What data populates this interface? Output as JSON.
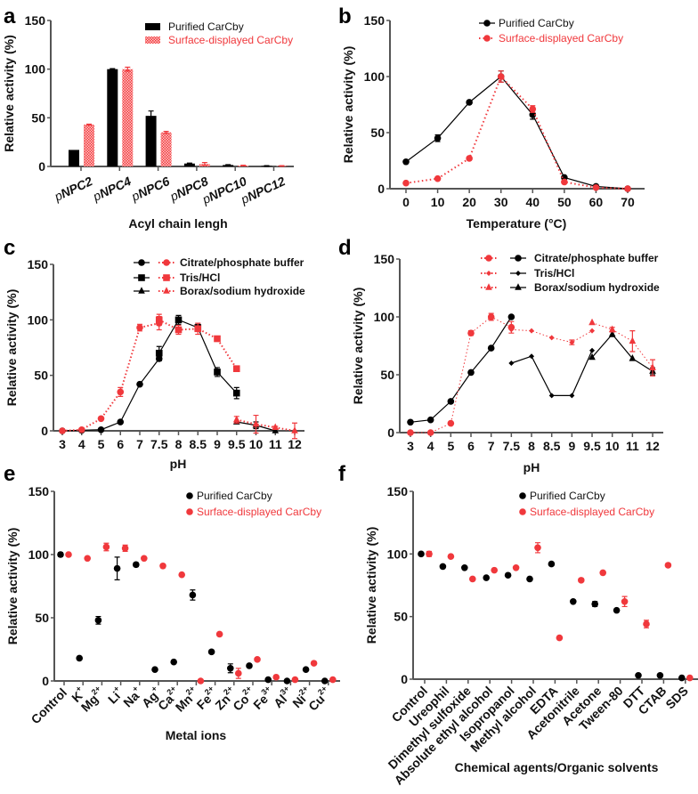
{
  "colors": {
    "purified": "#000000",
    "surface": "#f0383c",
    "axis": "#555555"
  },
  "chart_data": [
    {
      "panel": "a",
      "type": "bar",
      "xlabel": "Acyl chain lengh",
      "ylabel": "Relative activity (%)",
      "ylim": [
        0,
        150
      ],
      "yticks": [
        0,
        50,
        100,
        150
      ],
      "categories": [
        {
          "prefix": "p",
          "name": "NPC2"
        },
        {
          "prefix": "p",
          "name": "NPC4"
        },
        {
          "prefix": "p",
          "name": "NPC6"
        },
        {
          "prefix": "p",
          "name": "NPC8"
        },
        {
          "prefix": "p",
          "name": "NPC10"
        },
        {
          "prefix": "p",
          "name": "NPC12"
        }
      ],
      "legend_position": "top-right",
      "series": [
        {
          "name": "Purified CarCby",
          "values": [
            17,
            100,
            52,
            3,
            1.5,
            0.5
          ],
          "errors": [
            0,
            0.5,
            5,
            0.5,
            0.3,
            0.3
          ]
        },
        {
          "name": "Surface-displayed CarCby",
          "values": [
            43,
            100,
            35,
            2.5,
            1,
            0.5
          ],
          "errors": [
            0.5,
            2,
            1,
            1.5,
            0.3,
            0.3
          ]
        }
      ]
    },
    {
      "panel": "b",
      "type": "line",
      "xlabel": "Temperature  (°C)",
      "ylabel": "Relative activity (%)",
      "ylim": [
        0,
        150
      ],
      "yticks": [
        0,
        50,
        100,
        150
      ],
      "x": [
        0,
        10,
        20,
        30,
        40,
        50,
        60,
        70
      ],
      "legend_position": "top-right",
      "series": [
        {
          "name": "Purified CarCby",
          "values": [
            24,
            45,
            77,
            100,
            66,
            10,
            2,
            0
          ],
          "errors": [
            0,
            3,
            0,
            5,
            4,
            0,
            0,
            0
          ]
        },
        {
          "name": "Surface-displayed CarCby",
          "values": [
            5,
            9,
            27,
            100,
            71,
            6,
            1,
            0
          ],
          "errors": [
            0,
            0,
            0,
            5,
            3,
            0,
            0,
            0
          ]
        }
      ]
    },
    {
      "panel": "c",
      "type": "line",
      "xlabel": "pH",
      "ylabel": "Relative activity (%)",
      "ylim": [
        0,
        150
      ],
      "yticks": [
        0,
        50,
        100,
        150
      ],
      "categories": [
        "3",
        "4",
        "5",
        "6",
        "7",
        "7.5",
        "8",
        "8.5",
        "9",
        "9.5",
        "10",
        "11",
        "12"
      ],
      "legend_position": "top-right",
      "legend": [
        "Citrate/phosphate buffer",
        "Tris/HCl",
        "Borax/sodium hydroxide"
      ],
      "series": [
        {
          "group": "purified",
          "buffer": 0,
          "marker": "circle",
          "x": [
            "3",
            "4",
            "5",
            "6",
            "7",
            "7.5"
          ],
          "values": [
            0,
            0.5,
            1,
            8,
            42,
            65
          ],
          "errors": [
            0,
            0,
            0,
            0,
            0,
            2
          ]
        },
        {
          "group": "purified",
          "buffer": 1,
          "marker": "square",
          "x": [
            "7.5",
            "8",
            "8.5",
            "9",
            "9.5"
          ],
          "values": [
            70,
            100,
            93,
            53,
            34
          ],
          "errors": [
            6,
            4,
            3,
            4,
            5
          ]
        },
        {
          "group": "purified",
          "buffer": 2,
          "marker": "triangle",
          "x": [
            "9.5",
            "10",
            "11"
          ],
          "values": [
            8,
            5,
            0
          ],
          "errors": [
            0,
            3,
            0
          ]
        },
        {
          "group": "surface",
          "buffer": 0,
          "marker": "circle",
          "x": [
            "3",
            "4",
            "5",
            "6",
            "7",
            "7.5"
          ],
          "values": [
            0,
            1,
            11,
            35,
            93,
            97
          ],
          "errors": [
            0,
            0,
            0,
            4,
            3,
            6
          ]
        },
        {
          "group": "surface",
          "buffer": 1,
          "marker": "square",
          "x": [
            "7.5",
            "8",
            "8.5",
            "9",
            "9.5"
          ],
          "values": [
            100,
            91,
            92,
            83,
            56
          ],
          "errors": [
            5,
            4,
            5,
            0,
            0
          ]
        },
        {
          "group": "surface",
          "buffer": 2,
          "marker": "triangle",
          "x": [
            "9.5",
            "10",
            "11",
            "12"
          ],
          "values": [
            10,
            6,
            3,
            0
          ],
          "errors": [
            3,
            8,
            1,
            7
          ]
        }
      ]
    },
    {
      "panel": "d",
      "type": "line",
      "xlabel": "pH",
      "ylabel": "Relative activity (%)",
      "ylim": [
        0,
        150
      ],
      "yticks": [
        0,
        50,
        100,
        150
      ],
      "categories": [
        "3",
        "4",
        "5",
        "6",
        "7",
        "7.5",
        "8",
        "8.5",
        "9",
        "9.5",
        "10",
        "11",
        "12"
      ],
      "legend_position": "top-right",
      "legend": [
        "Citrate/phosphate buffer",
        "Tris/HCl",
        "Borax/sodium hydroxide"
      ],
      "series": [
        {
          "group": "purified",
          "buffer": 0,
          "marker": "circle",
          "x": [
            "3",
            "4",
            "5",
            "6",
            "7",
            "7.5"
          ],
          "values": [
            9,
            11,
            27,
            52,
            73,
            100
          ],
          "errors": [
            0,
            0,
            0,
            0,
            0,
            0
          ]
        },
        {
          "group": "purified",
          "buffer": 1,
          "marker": "diamond",
          "x": [
            "7.5",
            "8",
            "8.5",
            "9",
            "9.5"
          ],
          "values": [
            60,
            66,
            32,
            32,
            71
          ],
          "errors": [
            0,
            0,
            0,
            0,
            0
          ]
        },
        {
          "group": "purified",
          "buffer": 2,
          "marker": "triangle",
          "x": [
            "9.5",
            "10",
            "11",
            "12"
          ],
          "values": [
            65,
            85,
            64,
            53
          ],
          "errors": [
            0,
            2,
            0,
            3
          ]
        },
        {
          "group": "surface",
          "buffer": 0,
          "marker": "circle",
          "x": [
            "3",
            "4",
            "5",
            "6",
            "7",
            "7.5"
          ],
          "values": [
            0,
            0,
            8,
            86,
            100,
            91
          ],
          "errors": [
            0,
            0,
            0,
            2,
            3,
            5
          ]
        },
        {
          "group": "surface",
          "buffer": 1,
          "marker": "diamond",
          "x": [
            "7.5",
            "8",
            "8.5",
            "9",
            "9.5"
          ],
          "values": [
            89,
            88,
            82,
            78,
            88
          ],
          "errors": [
            0,
            0,
            0,
            2,
            0
          ]
        },
        {
          "group": "surface",
          "buffer": 2,
          "marker": "triangle",
          "x": [
            "9.5",
            "10",
            "11",
            "12"
          ],
          "values": [
            95,
            89,
            79,
            56
          ],
          "errors": [
            0,
            2,
            9,
            7
          ]
        }
      ]
    },
    {
      "panel": "e",
      "type": "scatter",
      "xlabel": "Metal ions",
      "ylabel": "Relative activity (%)",
      "ylim": [
        0,
        150
      ],
      "yticks": [
        0,
        50,
        100,
        150
      ],
      "categories": [
        {
          "base": "Control",
          "sup": ""
        },
        {
          "base": "K",
          "sup": "+"
        },
        {
          "base": "Mg",
          "sup": "2+"
        },
        {
          "base": "Li",
          "sup": "+"
        },
        {
          "base": "Na",
          "sup": "+"
        },
        {
          "base": "Ag",
          "sup": "+"
        },
        {
          "base": "Ca",
          "sup": "2+"
        },
        {
          "base": "Mn",
          "sup": "2+"
        },
        {
          "base": "Fe",
          "sup": "2+"
        },
        {
          "base": "Zn",
          "sup": "2+"
        },
        {
          "base": "Co",
          "sup": "2+"
        },
        {
          "base": "Fe",
          "sup": "3+"
        },
        {
          "base": "Al",
          "sup": "3+"
        },
        {
          "base": "Ni",
          "sup": "2+"
        },
        {
          "base": "Cu",
          "sup": "2+"
        }
      ],
      "legend_position": "top-right",
      "series": [
        {
          "name": "Purified CarCby",
          "values": [
            100,
            18,
            48,
            89,
            92,
            9,
            15,
            68,
            23,
            10,
            12,
            1,
            0,
            9,
            0
          ],
          "errors": [
            1.5,
            0,
            3,
            9,
            1.5,
            0,
            0,
            4,
            0,
            3.5,
            0,
            0,
            0,
            0,
            0
          ]
        },
        {
          "name": "Surface-displayed CarCby",
          "values": [
            100,
            97,
            106,
            105,
            97,
            91,
            84,
            0,
            37,
            6,
            17,
            3,
            1,
            14,
            1
          ],
          "errors": [
            0,
            0,
            3,
            2.5,
            0,
            1.5,
            0,
            0,
            0,
            4,
            0,
            0,
            0,
            0,
            0
          ]
        }
      ]
    },
    {
      "panel": "f",
      "type": "scatter",
      "xlabel": "Chemical agents/Organic solvents",
      "ylabel": "Relative activity (%)",
      "ylim": [
        0,
        150
      ],
      "yticks": [
        0,
        50,
        100,
        150
      ],
      "categories": [
        "Control",
        "Ureophil",
        "Dimethyl sulfoxide",
        "Absolute ethyl alcohol",
        "Isopropanol",
        "Methyl alcohol",
        "EDTA",
        "Acetonitrile",
        "Acetone",
        "Tween-80",
        "DTT",
        "CTAB",
        "SDS"
      ],
      "legend_position": "top-right",
      "series": [
        {
          "name": "Purified CarCby",
          "values": [
            100,
            90,
            89,
            81,
            83,
            80,
            92,
            62,
            60,
            55,
            3,
            3,
            1
          ],
          "errors": [
            0,
            0,
            0,
            0,
            0,
            0,
            0,
            0,
            2,
            0,
            0,
            0,
            0
          ]
        },
        {
          "name": "Surface-displayed CarCby",
          "values": [
            100,
            98,
            80,
            87,
            89,
            105,
            33,
            79,
            85,
            62,
            44,
            91,
            1
          ],
          "errors": [
            2,
            0,
            0,
            0,
            0,
            4,
            0,
            0,
            0,
            4,
            3,
            0,
            0
          ]
        }
      ]
    }
  ]
}
